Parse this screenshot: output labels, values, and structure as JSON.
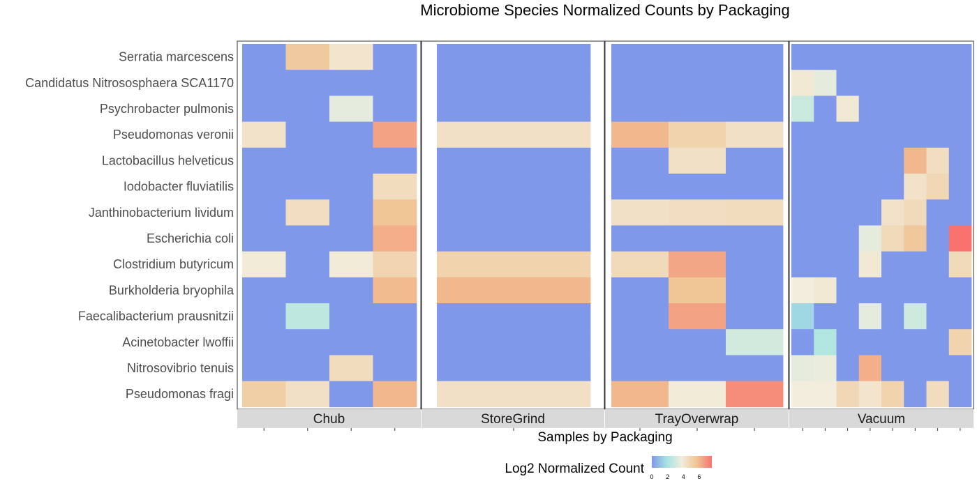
{
  "chart_data": {
    "type": "heatmap",
    "title": "Microbiome Species Normalized Counts by Packaging",
    "xlabel": "Samples by Packaging",
    "ylabel": "",
    "legend": {
      "title": "Log2 Normalized Count",
      "ticks": [
        0,
        2,
        4,
        6
      ],
      "range": [
        0,
        7.6
      ],
      "placement": "bottom",
      "colors": [
        "#8098EA",
        "#A5E4E0",
        "#F2EDDC",
        "#F0C493",
        "#F8736E"
      ]
    },
    "species": [
      "Serratia marcescens",
      "Candidatus Nitrososphaera SCA1170",
      "Psychrobacter pulmonis",
      "Pseudomonas veronii",
      "Lactobacillus helveticus",
      "Iodobacter fluviatilis",
      "Janthinobacterium lividum",
      "Escherichia coli",
      "Clostridium butyricum",
      "Burkholderia bryophila",
      "Faecalibacterium prausnitzii",
      "Acinetobacter lwoffii",
      "Nitrosovibrio tenuis",
      "Pseudomonas fragi"
    ],
    "panels": [
      {
        "name": "Chub",
        "samples": 4,
        "values": [
          [
            0,
            5.4,
            4.2,
            0
          ],
          [
            0,
            0,
            0,
            0
          ],
          [
            0,
            0,
            3.5,
            0
          ],
          [
            4.3,
            0,
            0,
            6.5
          ],
          [
            0,
            0,
            0,
            0
          ],
          [
            0,
            0,
            0,
            4.6
          ],
          [
            0,
            4.5,
            0,
            5.6
          ],
          [
            0,
            0,
            0,
            6.2
          ],
          [
            3.9,
            0,
            3.9,
            4.9
          ],
          [
            0,
            0,
            0,
            5.9
          ],
          [
            0,
            2.5,
            0,
            0
          ],
          [
            0,
            0,
            0,
            0
          ],
          [
            0,
            0,
            4.6,
            0
          ],
          [
            5.2,
            4.4,
            0,
            6.0
          ]
        ]
      },
      {
        "name": "StoreGrind",
        "samples": 1,
        "values": [
          [
            0
          ],
          [
            0
          ],
          [
            0
          ],
          [
            4.4
          ],
          [
            0
          ],
          [
            0
          ],
          [
            0
          ],
          [
            0
          ],
          [
            5.0
          ],
          [
            6.0
          ],
          [
            0
          ],
          [
            0
          ],
          [
            0
          ],
          [
            4.4
          ]
        ]
      },
      {
        "name": "TrayOverwrap",
        "samples": 3,
        "values": [
          [
            0,
            0,
            0
          ],
          [
            0,
            0,
            0
          ],
          [
            0,
            0,
            0
          ],
          [
            6.0,
            5.0,
            4.4
          ],
          [
            0,
            4.4,
            0
          ],
          [
            0,
            0,
            0
          ],
          [
            4.4,
            4.5,
            4.6
          ],
          [
            0,
            0,
            0
          ],
          [
            4.7,
            6.4,
            0
          ],
          [
            0,
            5.6,
            0
          ],
          [
            0,
            6.5,
            0
          ],
          [
            0,
            0,
            3.0
          ],
          [
            0,
            0,
            0
          ],
          [
            6.0,
            3.9,
            7.0
          ]
        ]
      },
      {
        "name": "Vacuum",
        "samples": 8,
        "values": [
          [
            0,
            0,
            0,
            0,
            0,
            0,
            0,
            0
          ],
          [
            4.0,
            3.5,
            0,
            0,
            0,
            0,
            0,
            0
          ],
          [
            2.8,
            0,
            4.0,
            0,
            0,
            0,
            0,
            0
          ],
          [
            0,
            0,
            0,
            0,
            0,
            0,
            0,
            0
          ],
          [
            0,
            0,
            0,
            0,
            0,
            6.0,
            4.5,
            0
          ],
          [
            0,
            0,
            0,
            0,
            0,
            4.3,
            4.8,
            0
          ],
          [
            0,
            0,
            0,
            0,
            4.3,
            4.7,
            0,
            0
          ],
          [
            0,
            0,
            0,
            3.5,
            4.7,
            5.5,
            0,
            7.6
          ],
          [
            0,
            0,
            0,
            4.0,
            0,
            0,
            0,
            4.7
          ],
          [
            3.8,
            4.0,
            0,
            0,
            0,
            0,
            0,
            0
          ],
          [
            1.6,
            0,
            0,
            3.5,
            0,
            2.9,
            0,
            0
          ],
          [
            0,
            2.2,
            0,
            0,
            0,
            0,
            0,
            5.0
          ],
          [
            3.5,
            3.6,
            0,
            6.2,
            0,
            0,
            0,
            0
          ],
          [
            3.8,
            3.8,
            4.8,
            4.2,
            5.0,
            0,
            4.6,
            0
          ]
        ]
      }
    ]
  }
}
